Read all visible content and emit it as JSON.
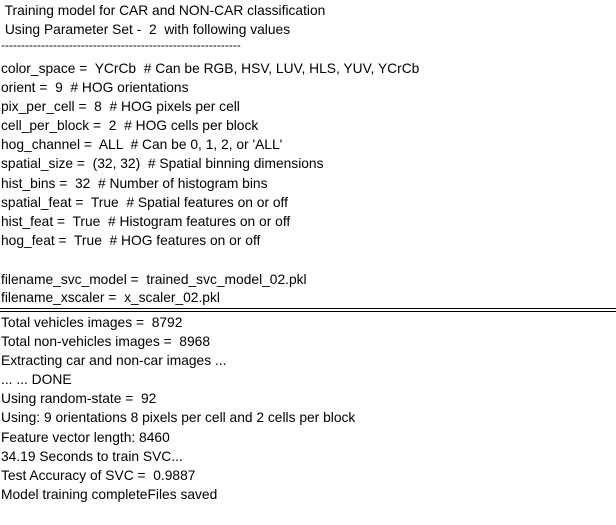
{
  "header": {
    "title": " Training model for CAR and NON-CAR classification",
    "parameter_set": " Using Parameter Set -  2  with following values",
    "dashes": "------------------------------------------------------------"
  },
  "parameters": [
    "color_space =  YCrCb  # Can be RGB, HSV, LUV, HLS, YUV, YCrCb",
    "orient =  9  # HOG orientations",
    "pix_per_cell =  8  # HOG pixels per cell",
    "cell_per_block =  2  # HOG cells per block",
    "hog_channel =  ALL  # Can be 0, 1, 2, or 'ALL'",
    "spatial_size =  (32, 32)  # Spatial binning dimensions",
    "hist_bins =  32  # Number of histogram bins",
    "spatial_feat =  True  # Spatial features on or off",
    "hist_feat =  True  # Histogram features on or off",
    "hog_feat =  True  # HOG features on or off"
  ],
  "files": [
    "filename_svc_model =  trained_svc_model_02.pkl",
    "filename_xscaler =  x_scaler_02.pkl"
  ],
  "output": [
    "Total vehicles images =  8792",
    "Total non-vehicles images =  8968",
    "Extracting car and non-car images ...",
    "... ... DONE",
    "Using random-state =  92",
    "Using: 9 orientations 8 pixels per cell and 2 cells per block",
    "Feature vector length: 8460",
    "34.19 Seconds to train SVC...",
    "Test Accuracy of SVC =  0.9887",
    "Model training completeFiles saved"
  ]
}
